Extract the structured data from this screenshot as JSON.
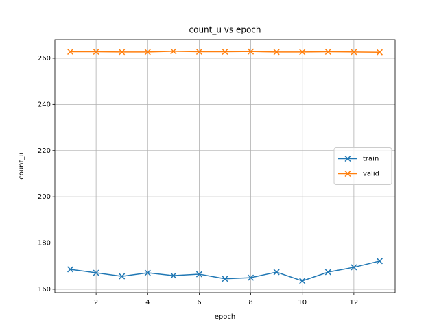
{
  "chart_data": {
    "type": "line",
    "title": "count_u vs epoch",
    "xlabel": "epoch",
    "ylabel": "count_u",
    "x": [
      1,
      2,
      3,
      4,
      5,
      6,
      7,
      8,
      9,
      10,
      11,
      12,
      13
    ],
    "series": [
      {
        "name": "train",
        "color": "#1f77b4",
        "values": [
          168.6,
          167.1,
          165.6,
          167.1,
          165.9,
          166.5,
          164.5,
          165.0,
          167.4,
          163.6,
          167.4,
          169.5,
          172.2
        ]
      },
      {
        "name": "valid",
        "color": "#ff7f0e",
        "values": [
          262.8,
          262.8,
          262.7,
          262.7,
          263.0,
          262.8,
          262.8,
          262.9,
          262.7,
          262.7,
          262.8,
          262.7,
          262.6
        ]
      }
    ],
    "marker": "x",
    "xlim": [
      0.4,
      13.6
    ],
    "ylim": [
      158.5,
      268.0
    ],
    "xticks": [
      2,
      4,
      6,
      8,
      10,
      12
    ],
    "yticks": [
      160,
      180,
      200,
      220,
      240,
      260
    ],
    "grid": true,
    "legend": "center right"
  }
}
